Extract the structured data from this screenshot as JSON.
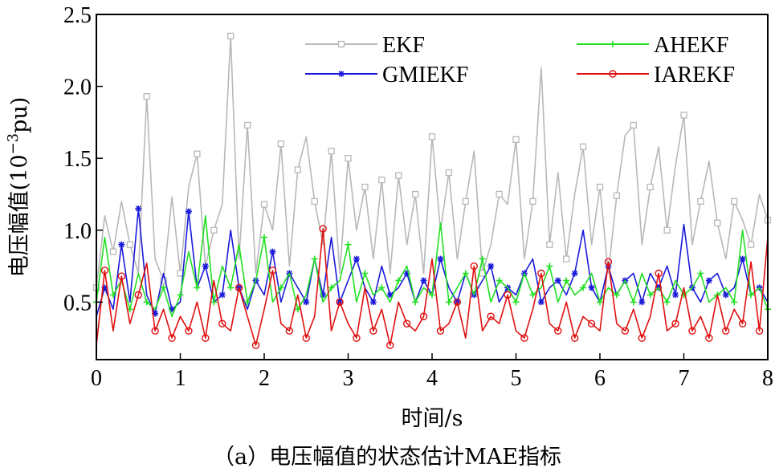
{
  "chart_data": {
    "type": "line",
    "title": "",
    "caption": "（a）电压幅值的状态估计MAE指标",
    "xlabel": "时间/s",
    "ylabel_main": "电压幅值(10",
    "ylabel_exp": "−3",
    "ylabel_unit": "pu)",
    "xlim": [
      0,
      8
    ],
    "ylim": [
      0.1,
      2.5
    ],
    "x_ticks": [
      {
        "value": 0,
        "label": "0"
      },
      {
        "value": 1,
        "label": "1"
      },
      {
        "value": 2,
        "label": "2"
      },
      {
        "value": 3,
        "label": "3"
      },
      {
        "value": 4,
        "label": "4"
      },
      {
        "value": 5,
        "label": "5"
      },
      {
        "value": 6,
        "label": "6"
      },
      {
        "value": 7,
        "label": "7"
      },
      {
        "value": 8,
        "label": "8"
      }
    ],
    "y_ticks": [
      {
        "value": 0.5,
        "label": "0.5"
      },
      {
        "value": 1.0,
        "label": "1.0"
      },
      {
        "value": 1.5,
        "label": "1.5"
      },
      {
        "value": 2.0,
        "label": "2.0"
      },
      {
        "value": 2.5,
        "label": "2.5"
      }
    ],
    "grid": false,
    "legend_position": "top",
    "series": [
      {
        "name": "EKF",
        "color": "#b8b8b8",
        "marker": "square",
        "x": [
          0.0,
          0.1,
          0.2,
          0.3,
          0.4,
          0.5,
          0.6,
          0.7,
          0.8,
          0.9,
          1.0,
          1.1,
          1.2,
          1.3,
          1.4,
          1.5,
          1.6,
          1.7,
          1.8,
          1.9,
          2.0,
          2.1,
          2.2,
          2.3,
          2.4,
          2.5,
          2.6,
          2.7,
          2.8,
          2.9,
          3.0,
          3.1,
          3.2,
          3.3,
          3.4,
          3.5,
          3.6,
          3.7,
          3.8,
          3.9,
          4.0,
          4.1,
          4.2,
          4.3,
          4.4,
          4.5,
          4.6,
          4.7,
          4.8,
          4.9,
          5.0,
          5.1,
          5.2,
          5.3,
          5.4,
          5.5,
          5.6,
          5.7,
          5.8,
          5.9,
          6.0,
          6.1,
          6.2,
          6.3,
          6.4,
          6.5,
          6.6,
          6.7,
          6.8,
          6.9,
          7.0,
          7.1,
          7.2,
          7.3,
          7.4,
          7.5,
          7.6,
          7.7,
          7.8,
          7.9,
          8.0
        ],
        "values": [
          0.6,
          1.1,
          0.85,
          1.2,
          0.9,
          0.7,
          1.93,
          0.8,
          0.65,
          1.23,
          0.7,
          1.3,
          1.53,
          0.75,
          1.0,
          1.18,
          2.35,
          0.8,
          1.73,
          0.7,
          1.18,
          1.0,
          1.6,
          0.75,
          1.42,
          1.65,
          1.2,
          0.9,
          1.55,
          0.7,
          1.5,
          1.0,
          1.3,
          0.8,
          1.35,
          0.7,
          1.38,
          0.9,
          1.25,
          0.7,
          1.65,
          1.0,
          1.4,
          0.8,
          1.2,
          1.55,
          0.7,
          0.9,
          1.25,
          1.18,
          1.63,
          0.8,
          1.2,
          2.13,
          0.9,
          1.4,
          0.8,
          1.25,
          1.58,
          0.9,
          1.3,
          0.7,
          1.24,
          1.66,
          1.73,
          0.9,
          1.3,
          1.58,
          1.0,
          1.45,
          1.8,
          0.9,
          1.2,
          1.48,
          1.05,
          0.8,
          1.2,
          1.07,
          0.9,
          1.25,
          1.07
        ]
      },
      {
        "name": "GMIEKF",
        "color": "#1a1adb",
        "marker": "star",
        "x": [
          0.0,
          0.1,
          0.2,
          0.3,
          0.4,
          0.5,
          0.6,
          0.7,
          0.8,
          0.9,
          1.0,
          1.1,
          1.2,
          1.3,
          1.4,
          1.5,
          1.6,
          1.7,
          1.8,
          1.9,
          2.0,
          2.1,
          2.2,
          2.3,
          2.4,
          2.5,
          2.6,
          2.7,
          2.8,
          2.9,
          3.0,
          3.1,
          3.2,
          3.3,
          3.4,
          3.5,
          3.6,
          3.7,
          3.8,
          3.9,
          4.0,
          4.1,
          4.2,
          4.3,
          4.4,
          4.5,
          4.6,
          4.7,
          4.8,
          4.9,
          5.0,
          5.1,
          5.2,
          5.3,
          5.4,
          5.5,
          5.6,
          5.7,
          5.8,
          5.9,
          6.0,
          6.1,
          6.2,
          6.3,
          6.4,
          6.5,
          6.6,
          6.7,
          6.8,
          6.9,
          7.0,
          7.1,
          7.2,
          7.3,
          7.4,
          7.5,
          7.6,
          7.7,
          7.8,
          7.9,
          8.0
        ],
        "values": [
          0.4,
          0.6,
          0.45,
          0.9,
          0.5,
          1.15,
          0.55,
          0.42,
          0.7,
          0.45,
          0.5,
          1.13,
          0.6,
          0.75,
          0.5,
          0.55,
          1.0,
          0.6,
          0.45,
          0.65,
          0.55,
          0.85,
          0.5,
          0.7,
          0.6,
          0.5,
          0.8,
          0.55,
          0.95,
          0.5,
          0.65,
          0.8,
          0.6,
          0.5,
          0.75,
          0.55,
          0.6,
          0.7,
          0.5,
          0.65,
          0.55,
          0.8,
          0.6,
          0.5,
          0.7,
          0.55,
          0.65,
          0.75,
          0.5,
          0.6,
          0.55,
          0.7,
          0.8,
          0.5,
          0.6,
          0.65,
          0.55,
          0.7,
          1.0,
          0.6,
          0.5,
          0.75,
          0.55,
          0.65,
          0.7,
          0.5,
          0.7,
          0.6,
          0.75,
          0.55,
          1.04,
          0.6,
          0.5,
          0.65,
          0.7,
          0.55,
          0.6,
          0.8,
          0.55,
          0.6,
          0.5
        ]
      },
      {
        "name": "AHEKF",
        "color": "#22e022",
        "marker": "plus",
        "x": [
          0.0,
          0.1,
          0.2,
          0.3,
          0.4,
          0.5,
          0.6,
          0.7,
          0.8,
          0.9,
          1.0,
          1.1,
          1.2,
          1.3,
          1.4,
          1.5,
          1.6,
          1.7,
          1.8,
          1.9,
          2.0,
          2.1,
          2.2,
          2.3,
          2.4,
          2.5,
          2.6,
          2.7,
          2.8,
          2.9,
          3.0,
          3.1,
          3.2,
          3.3,
          3.4,
          3.5,
          3.6,
          3.7,
          3.8,
          3.9,
          4.0,
          4.1,
          4.2,
          4.3,
          4.4,
          4.5,
          4.6,
          4.7,
          4.8,
          4.9,
          5.0,
          5.1,
          5.2,
          5.3,
          5.4,
          5.5,
          5.6,
          5.7,
          5.8,
          5.9,
          6.0,
          6.1,
          6.2,
          6.3,
          6.4,
          6.5,
          6.6,
          6.7,
          6.8,
          6.9,
          7.0,
          7.1,
          7.2,
          7.3,
          7.4,
          7.5,
          7.6,
          7.7,
          7.8,
          7.9,
          8.0
        ],
        "values": [
          0.5,
          0.95,
          0.55,
          0.65,
          0.45,
          0.7,
          0.5,
          0.45,
          0.6,
          0.4,
          0.55,
          0.85,
          0.6,
          1.1,
          0.5,
          0.75,
          0.6,
          0.9,
          0.5,
          0.65,
          0.95,
          0.5,
          0.6,
          0.7,
          0.45,
          0.55,
          0.8,
          0.5,
          0.6,
          0.65,
          0.9,
          0.5,
          0.7,
          0.55,
          0.6,
          0.5,
          0.65,
          0.75,
          0.5,
          0.6,
          0.55,
          1.05,
          0.5,
          0.6,
          0.7,
          0.55,
          0.8,
          0.5,
          0.65,
          0.6,
          0.5,
          0.7,
          0.55,
          0.6,
          0.75,
          0.5,
          0.65,
          0.55,
          0.6,
          0.7,
          0.5,
          0.6,
          0.55,
          0.65,
          0.5,
          0.7,
          0.55,
          0.6,
          0.5,
          0.65,
          0.55,
          0.6,
          0.7,
          0.5,
          0.55,
          0.6,
          0.5,
          1.0,
          0.55,
          0.6,
          0.45
        ]
      },
      {
        "name": "IAREKF",
        "color": "#e01010",
        "marker": "circle",
        "x": [
          0.0,
          0.1,
          0.2,
          0.3,
          0.4,
          0.5,
          0.6,
          0.7,
          0.8,
          0.9,
          1.0,
          1.1,
          1.2,
          1.3,
          1.4,
          1.5,
          1.6,
          1.7,
          1.8,
          1.9,
          2.0,
          2.1,
          2.2,
          2.3,
          2.4,
          2.5,
          2.6,
          2.7,
          2.8,
          2.9,
          3.0,
          3.1,
          3.2,
          3.3,
          3.4,
          3.5,
          3.6,
          3.7,
          3.8,
          3.9,
          4.0,
          4.1,
          4.2,
          4.3,
          4.4,
          4.5,
          4.6,
          4.7,
          4.8,
          4.9,
          5.0,
          5.1,
          5.2,
          5.3,
          5.4,
          5.5,
          5.6,
          5.7,
          5.8,
          5.9,
          6.0,
          6.1,
          6.2,
          6.3,
          6.4,
          6.5,
          6.6,
          6.7,
          6.8,
          6.9,
          7.0,
          7.1,
          7.2,
          7.3,
          7.4,
          7.5,
          7.6,
          7.7,
          7.8,
          7.9,
          8.0
        ],
        "values": [
          0.2,
          0.72,
          0.3,
          0.68,
          0.35,
          0.55,
          0.77,
          0.3,
          0.45,
          0.25,
          0.4,
          0.3,
          0.5,
          0.25,
          0.65,
          0.35,
          0.3,
          0.6,
          0.4,
          0.2,
          0.45,
          0.72,
          0.35,
          0.3,
          0.55,
          0.25,
          0.4,
          1.01,
          0.3,
          0.5,
          0.35,
          0.25,
          0.6,
          0.3,
          0.45,
          0.2,
          0.5,
          0.35,
          0.3,
          0.4,
          0.8,
          0.3,
          0.35,
          0.5,
          0.25,
          0.75,
          0.3,
          0.4,
          0.35,
          0.55,
          0.3,
          0.25,
          0.45,
          0.7,
          0.35,
          0.3,
          0.5,
          0.25,
          0.4,
          0.35,
          0.3,
          0.78,
          0.35,
          0.3,
          0.45,
          0.25,
          0.4,
          0.7,
          0.3,
          0.35,
          0.6,
          0.3,
          0.4,
          0.25,
          0.55,
          0.3,
          0.45,
          0.35,
          0.78,
          0.3,
          0.95
        ]
      }
    ]
  }
}
